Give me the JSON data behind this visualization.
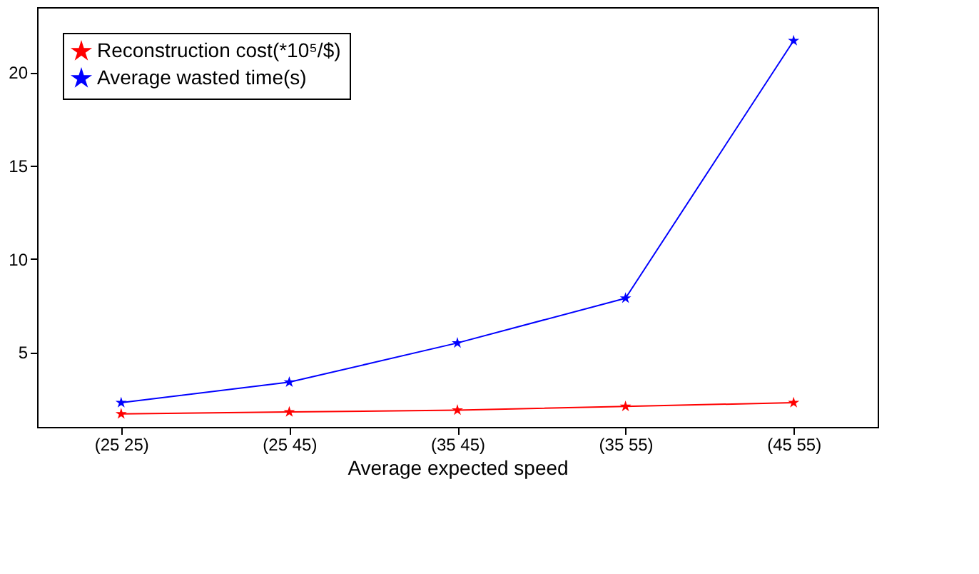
{
  "chart_data": {
    "type": "line",
    "xlabel": "Average expected speed",
    "categories": [
      "(25 25)",
      "(25 45)",
      "(35 45)",
      "(35 55)",
      "(45 55)"
    ],
    "series": [
      {
        "name": "Reconstruction cost(*10⁵/$)",
        "color": "#ff0000",
        "values": [
          1.7,
          1.8,
          1.9,
          2.1,
          2.3
        ]
      },
      {
        "name": "Average wasted time(s)",
        "color": "#0000ff",
        "values": [
          2.3,
          3.4,
          5.5,
          7.9,
          21.7
        ]
      }
    ],
    "ylim": [
      1,
      23.5
    ],
    "yticks": [
      5,
      10,
      15,
      20
    ],
    "grid": false,
    "legend": "top left",
    "marker": "star",
    "line_style": "solid"
  }
}
